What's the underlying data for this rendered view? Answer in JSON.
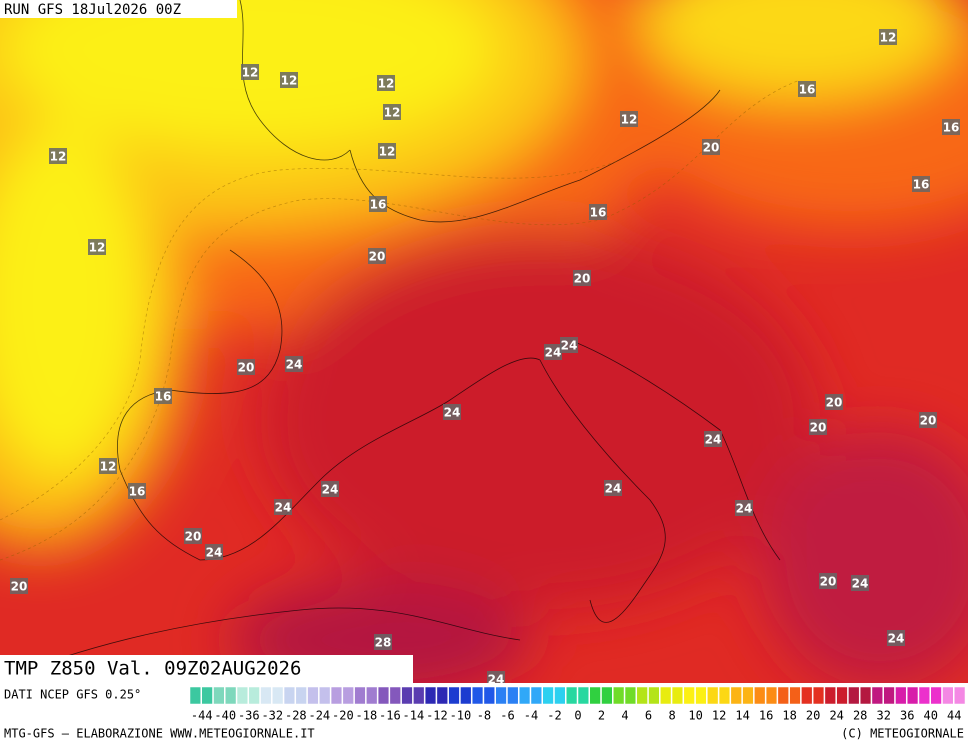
{
  "header": {
    "run": "RUN GFS 18Jul2026 00Z",
    "field": "TMP Z850 Val. 09Z02AUG2026"
  },
  "map": {
    "contour_labels": [
      12,
      12,
      12,
      12,
      12,
      12,
      12,
      12,
      16,
      16,
      20,
      16,
      16,
      16,
      12,
      20,
      20,
      24,
      24,
      20,
      24,
      16,
      24,
      20,
      20,
      20,
      24,
      12,
      16,
      24,
      24,
      24,
      24,
      20,
      24,
      20,
      20,
      24,
      28,
      24,
      24
    ]
  },
  "legend": {
    "source": "DATI NCEP GFS 0.25°",
    "labels": [
      -44,
      -40,
      -36,
      -32,
      -28,
      -24,
      -20,
      -18,
      -16,
      -14,
      -12,
      -10,
      -8,
      -6,
      -4,
      -2,
      0,
      2,
      4,
      6,
      8,
      10,
      12,
      14,
      16,
      18,
      20,
      24,
      28,
      32,
      36,
      40,
      44
    ],
    "colors": [
      "#3cc8a0",
      "#7ed8bc",
      "#b8ecdc",
      "#d8e8f4",
      "#c8d4f0",
      "#c4c0ec",
      "#b89ee0",
      "#a07cd0",
      "#8458bc",
      "#5a3cb0",
      "#2c28b4",
      "#1c3cd0",
      "#2058e8",
      "#2a80f4",
      "#30a8f8",
      "#2cd0f0",
      "#28d8a0",
      "#30d040",
      "#70dc28",
      "#b4e418",
      "#e8ec10",
      "#fcf014",
      "#fcd814",
      "#fcb414",
      "#fc8c14",
      "#f46018",
      "#e43020",
      "#cc1c2c",
      "#b41840",
      "#c01880",
      "#d81caa",
      "#ec30cc",
      "#f488e4"
    ]
  },
  "footer": {
    "left": "MTG-GFS — ELABORAZIONE WWW.METEOGIORNALE.IT",
    "right": "(C) METEOGIORNALE"
  }
}
